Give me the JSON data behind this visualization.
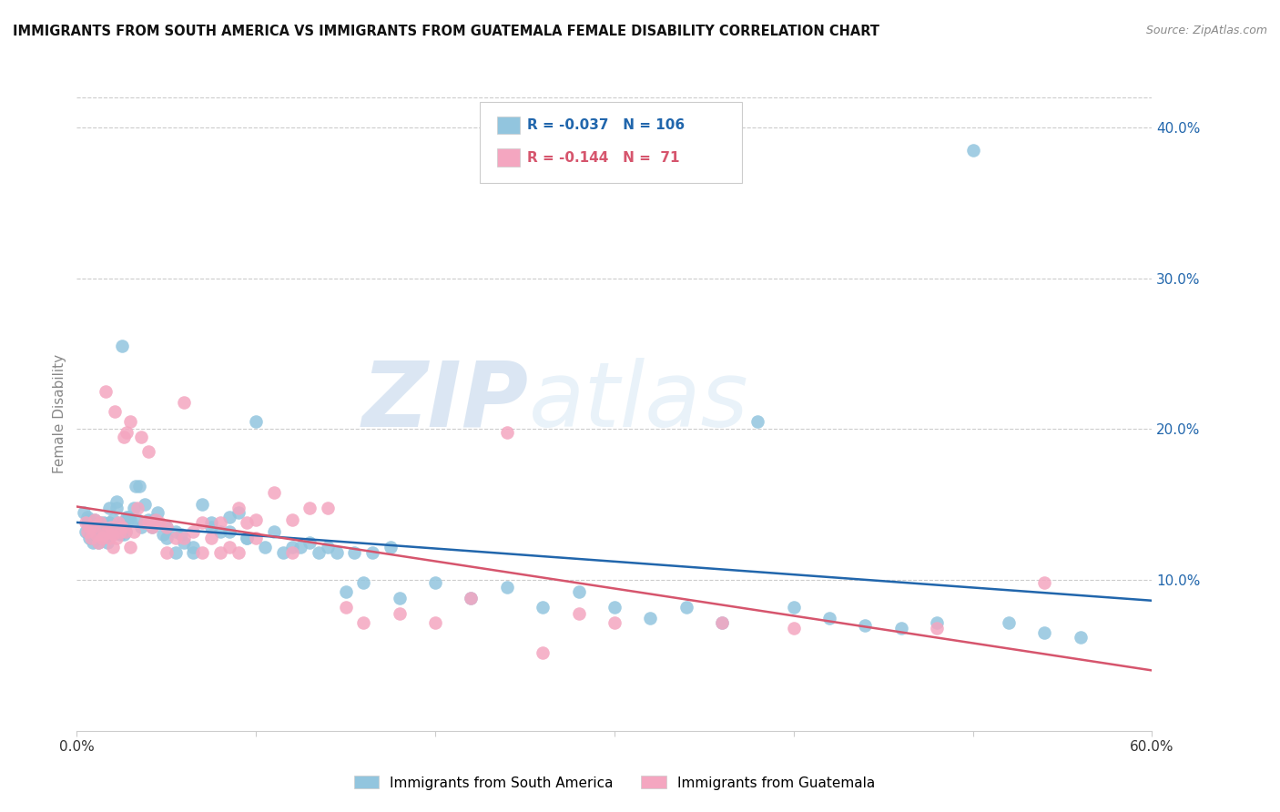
{
  "title": "IMMIGRANTS FROM SOUTH AMERICA VS IMMIGRANTS FROM GUATEMALA FEMALE DISABILITY CORRELATION CHART",
  "source": "Source: ZipAtlas.com",
  "ylabel": "Female Disability",
  "xlim": [
    0.0,
    0.6
  ],
  "ylim": [
    0.0,
    0.42
  ],
  "yticks": [
    0.1,
    0.2,
    0.3,
    0.4
  ],
  "ytick_labels": [
    "10.0%",
    "20.0%",
    "30.0%",
    "40.0%"
  ],
  "color_blue": "#92c5de",
  "color_pink": "#f4a6c0",
  "color_blue_line": "#2166ac",
  "color_pink_line": "#d6556d",
  "label1": "Immigrants from South America",
  "label2": "Immigrants from Guatemala",
  "background_color": "#ffffff",
  "watermark_zip": "ZIP",
  "watermark_atlas": "atlas",
  "blue_x": [
    0.004,
    0.005,
    0.006,
    0.006,
    0.007,
    0.007,
    0.007,
    0.008,
    0.008,
    0.009,
    0.009,
    0.01,
    0.01,
    0.011,
    0.011,
    0.012,
    0.012,
    0.013,
    0.013,
    0.014,
    0.014,
    0.015,
    0.015,
    0.016,
    0.016,
    0.017,
    0.018,
    0.019,
    0.02,
    0.021,
    0.022,
    0.023,
    0.024,
    0.025,
    0.026,
    0.027,
    0.028,
    0.029,
    0.03,
    0.032,
    0.034,
    0.036,
    0.038,
    0.04,
    0.042,
    0.045,
    0.048,
    0.05,
    0.055,
    0.06,
    0.065,
    0.07,
    0.075,
    0.08,
    0.085,
    0.09,
    0.095,
    0.1,
    0.11,
    0.12,
    0.13,
    0.14,
    0.15,
    0.16,
    0.18,
    0.2,
    0.22,
    0.24,
    0.26,
    0.28,
    0.3,
    0.32,
    0.34,
    0.36,
    0.38,
    0.4,
    0.42,
    0.44,
    0.46,
    0.48,
    0.5,
    0.52,
    0.54,
    0.56,
    0.025,
    0.035,
    0.045,
    0.055,
    0.065,
    0.075,
    0.085,
    0.095,
    0.105,
    0.115,
    0.125,
    0.135,
    0.145,
    0.155,
    0.165,
    0.175,
    0.018,
    0.022,
    0.028,
    0.033,
    0.038,
    0.043,
    0.05,
    0.058
  ],
  "blue_y": [
    0.145,
    0.132,
    0.138,
    0.142,
    0.128,
    0.135,
    0.14,
    0.13,
    0.137,
    0.125,
    0.133,
    0.128,
    0.14,
    0.13,
    0.136,
    0.125,
    0.133,
    0.13,
    0.138,
    0.128,
    0.135,
    0.13,
    0.138,
    0.13,
    0.135,
    0.125,
    0.138,
    0.132,
    0.14,
    0.132,
    0.148,
    0.135,
    0.13,
    0.138,
    0.13,
    0.132,
    0.138,
    0.142,
    0.14,
    0.148,
    0.14,
    0.135,
    0.15,
    0.14,
    0.135,
    0.145,
    0.13,
    0.128,
    0.118,
    0.125,
    0.118,
    0.15,
    0.135,
    0.132,
    0.142,
    0.145,
    0.128,
    0.205,
    0.132,
    0.122,
    0.125,
    0.122,
    0.092,
    0.098,
    0.088,
    0.098,
    0.088,
    0.095,
    0.082,
    0.092,
    0.082,
    0.075,
    0.082,
    0.072,
    0.205,
    0.082,
    0.075,
    0.07,
    0.068,
    0.072,
    0.385,
    0.072,
    0.065,
    0.062,
    0.255,
    0.162,
    0.138,
    0.132,
    0.122,
    0.138,
    0.132,
    0.128,
    0.122,
    0.118,
    0.122,
    0.118,
    0.118,
    0.118,
    0.118,
    0.122,
    0.148,
    0.152,
    0.142,
    0.162,
    0.138,
    0.14,
    0.135,
    0.13
  ],
  "pink_x": [
    0.005,
    0.006,
    0.007,
    0.008,
    0.009,
    0.01,
    0.011,
    0.012,
    0.013,
    0.014,
    0.015,
    0.016,
    0.017,
    0.018,
    0.019,
    0.02,
    0.021,
    0.022,
    0.023,
    0.024,
    0.025,
    0.026,
    0.027,
    0.028,
    0.03,
    0.032,
    0.034,
    0.036,
    0.038,
    0.04,
    0.042,
    0.044,
    0.046,
    0.05,
    0.055,
    0.06,
    0.065,
    0.07,
    0.075,
    0.08,
    0.085,
    0.09,
    0.095,
    0.1,
    0.11,
    0.12,
    0.13,
    0.14,
    0.15,
    0.16,
    0.18,
    0.2,
    0.22,
    0.24,
    0.26,
    0.28,
    0.3,
    0.36,
    0.4,
    0.48,
    0.54,
    0.02,
    0.03,
    0.04,
    0.05,
    0.06,
    0.07,
    0.08,
    0.09,
    0.1,
    0.12
  ],
  "pink_y": [
    0.138,
    0.132,
    0.135,
    0.128,
    0.135,
    0.14,
    0.13,
    0.125,
    0.138,
    0.128,
    0.13,
    0.225,
    0.132,
    0.128,
    0.135,
    0.122,
    0.212,
    0.128,
    0.138,
    0.132,
    0.135,
    0.195,
    0.132,
    0.198,
    0.205,
    0.132,
    0.148,
    0.195,
    0.138,
    0.185,
    0.135,
    0.14,
    0.138,
    0.135,
    0.128,
    0.128,
    0.132,
    0.138,
    0.128,
    0.138,
    0.122,
    0.148,
    0.138,
    0.14,
    0.158,
    0.14,
    0.148,
    0.148,
    0.082,
    0.072,
    0.078,
    0.072,
    0.088,
    0.198,
    0.052,
    0.078,
    0.072,
    0.072,
    0.068,
    0.068,
    0.098,
    0.13,
    0.122,
    0.138,
    0.118,
    0.218,
    0.118,
    0.118,
    0.118,
    0.128,
    0.118
  ]
}
